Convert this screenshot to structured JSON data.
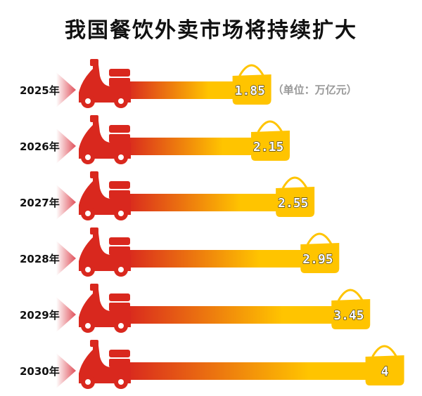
{
  "chart_data": {
    "type": "bar",
    "orientation": "horizontal",
    "title": "我国餐饮外卖市场将持续扩大",
    "unit_label": "（单位：万亿元）",
    "categories": [
      "2025年",
      "2026年",
      "2027年",
      "2028年",
      "2029年",
      "2030年"
    ],
    "values": [
      1.85,
      2.15,
      2.55,
      2.95,
      3.45,
      4
    ],
    "value_labels": [
      "1.85",
      "2.15",
      "2.55",
      "2.95",
      "3.45",
      "4"
    ],
    "colors": {
      "scooter": "#d9281e",
      "bar_start": "#d9281e",
      "bar_end": "#ffc400",
      "bag": "#ffc400"
    },
    "icon": "delivery-scooter-icon"
  }
}
